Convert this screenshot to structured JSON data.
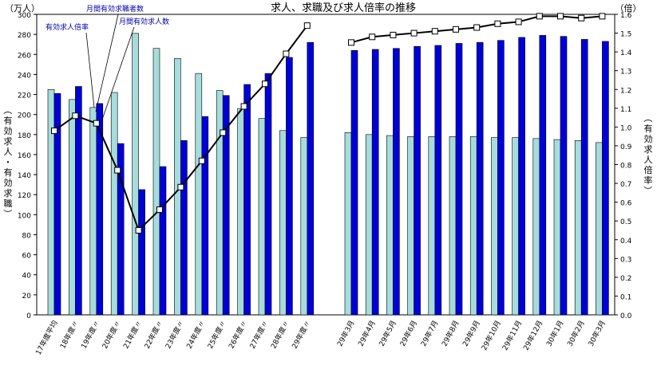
{
  "chart_data": {
    "type": "bar",
    "title": "求人、求職及び求人倍率の推移",
    "left_unit": "（万人）",
    "right_unit": "（倍）",
    "left_axis_label": "（有効求人・有効求職）",
    "right_axis_label": "（有効求人倍率）",
    "ylim_left": [
      0,
      300
    ],
    "ylim_right": [
      0,
      1.6
    ],
    "left_ticks": [
      "0",
      "20",
      "40",
      "60",
      "80",
      "100",
      "120",
      "140",
      "160",
      "180",
      "200",
      "220",
      "240",
      "260",
      "280",
      "300"
    ],
    "right_ticks": [
      "0.0",
      "0.1",
      "0.2",
      "0.3",
      "0.4",
      "0.5",
      "0.6",
      "0.7",
      "0.8",
      "0.9",
      "1.0",
      "1.1",
      "1.2",
      "1.3",
      "1.4",
      "1.5",
      "1.6"
    ],
    "annual_categories": [
      "17年度平均",
      "18年度〃",
      "19年度〃",
      "20年度〃",
      "21年度〃",
      "22年度〃",
      "23年度〃",
      "24年度〃",
      "25年度〃",
      "26年度〃",
      "27年度〃",
      "28年度〃",
      "29年度〃"
    ],
    "monthly_categories": [
      "29年3月",
      "29年4月",
      "29年5月",
      "29年6月",
      "29年7月",
      "29年8月",
      "29年9月",
      "29年10月",
      "29年11月",
      "29年12月",
      "30年1月",
      "30年2月",
      "30年3月"
    ],
    "series": [
      {
        "name": "月間有効求職者数",
        "color": "#a6dcdc",
        "annual": [
          225,
          215,
          207,
          222,
          281,
          266,
          256,
          241,
          224,
          206,
          196,
          184,
          177
        ],
        "monthly": [
          182,
          180,
          179,
          178,
          178,
          178,
          178,
          177,
          177,
          176,
          175,
          174,
          172
        ]
      },
      {
        "name": "月間有効求人数",
        "color": "#0000d8",
        "annual": [
          221,
          228,
          211,
          171,
          125,
          148,
          174,
          198,
          219,
          230,
          241,
          257,
          272
        ],
        "monthly": [
          264,
          265,
          266,
          268,
          269,
          271,
          272,
          274,
          277,
          279,
          278,
          275,
          273
        ]
      },
      {
        "name": "有効求人倍率",
        "color": "#000000",
        "annual": [
          0.98,
          1.06,
          1.02,
          0.77,
          0.45,
          0.56,
          0.68,
          0.82,
          0.97,
          1.11,
          1.23,
          1.39,
          1.54
        ],
        "monthly": [
          1.45,
          1.48,
          1.49,
          1.5,
          1.51,
          1.52,
          1.53,
          1.55,
          1.56,
          1.59,
          1.59,
          1.58,
          1.59
        ]
      }
    ]
  }
}
